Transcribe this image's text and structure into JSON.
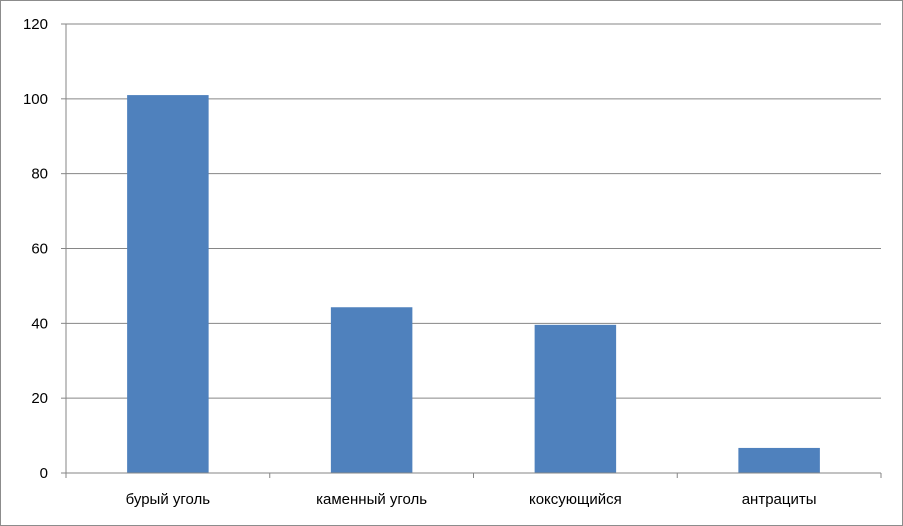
{
  "chart_data": {
    "type": "bar",
    "title": "",
    "xlabel": "",
    "ylabel": "",
    "categories": [
      "бурый уголь",
      "каменный уголь",
      "коксующийся",
      "антрациты"
    ],
    "values": [
      101,
      44.3,
      39.6,
      6.7
    ],
    "ylim": [
      0,
      120
    ],
    "yticks": [
      "0",
      "20",
      "40",
      "60",
      "80",
      "100",
      "120"
    ],
    "grid": true,
    "legend": "none",
    "bar_color": "#4f81bd",
    "grid_color": "#868686"
  }
}
